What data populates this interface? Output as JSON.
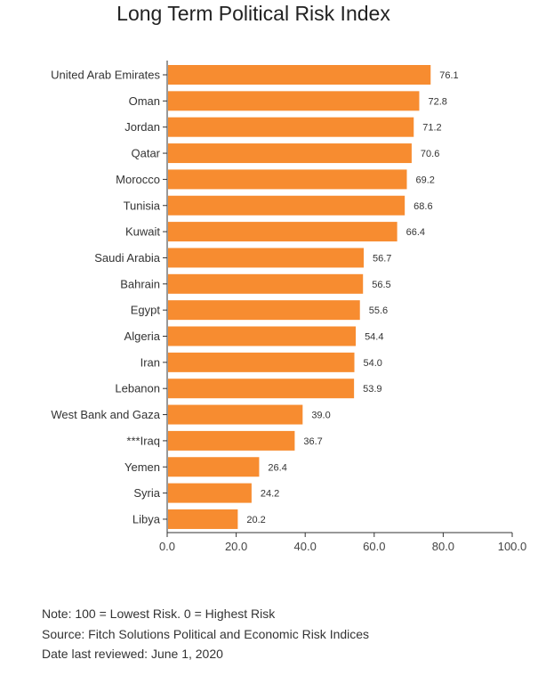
{
  "chart_data": {
    "type": "bar",
    "orientation": "horizontal",
    "title": "Long Term Political Risk Index",
    "categories": [
      "United Arab Emirates",
      "Oman",
      "Jordan",
      "Qatar",
      "Morocco",
      "Tunisia",
      "Kuwait",
      "Saudi Arabia",
      "Bahrain",
      "Egypt",
      "Algeria",
      "Iran",
      "Lebanon",
      "West Bank and Gaza",
      "***Iraq",
      "Yemen",
      "Syria",
      "Libya"
    ],
    "values": [
      76.1,
      72.8,
      71.2,
      70.6,
      69.2,
      68.6,
      66.4,
      56.7,
      56.5,
      55.6,
      54.4,
      54.0,
      53.9,
      39.0,
      36.7,
      26.4,
      24.2,
      20.2
    ],
    "value_labels": [
      "76.1",
      "72.8",
      "71.2",
      "70.6",
      "69.2",
      "68.6",
      "66.4",
      "56.7",
      "56.5",
      "55.6",
      "54.4",
      "54.0",
      "53.9",
      "39.0",
      "36.7",
      "26.4",
      "24.2",
      "20.2"
    ],
    "xlim": [
      0,
      100
    ],
    "ticks": [
      0,
      20,
      40,
      60,
      80,
      100
    ],
    "tick_labels": [
      "0.0",
      "20.0",
      "40.0",
      "60.0",
      "80.0",
      "100.0"
    ],
    "bar_color": "#f78c30",
    "grid": false
  },
  "notes": {
    "note": "Note: 100 = Lowest Risk. 0 = Highest Risk",
    "source": "Source: Fitch Solutions Political and Economic Risk Indices",
    "reviewed": "Date last reviewed: June 1, 2020"
  }
}
